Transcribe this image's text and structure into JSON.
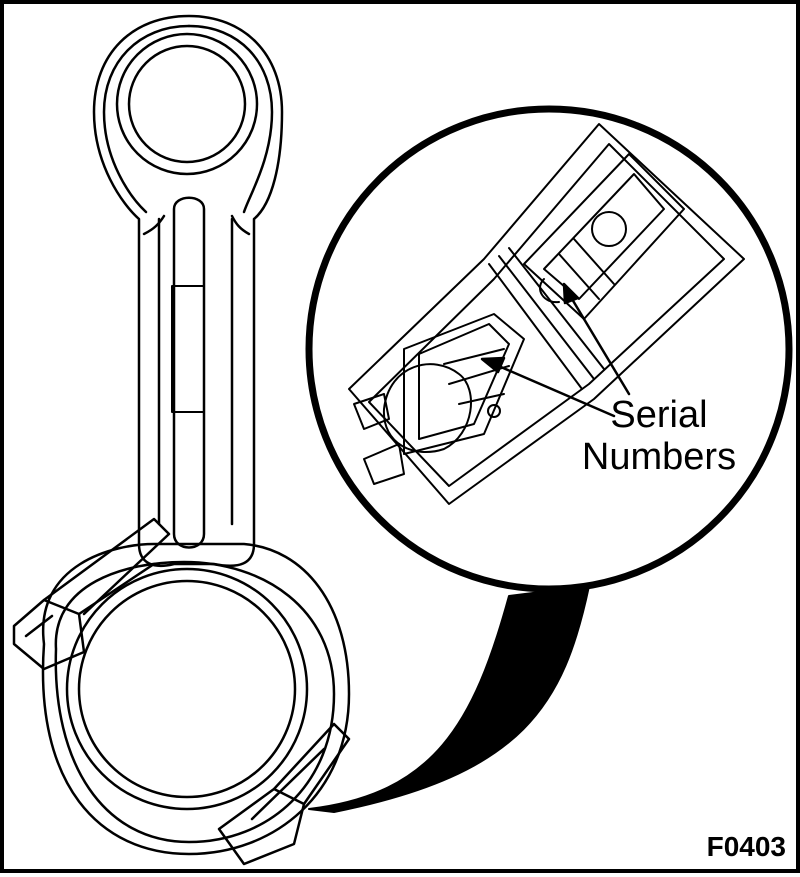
{
  "callout": {
    "line1": "Serial",
    "line2": "Numbers"
  },
  "figure_id": "F0403",
  "colors": {
    "ink": "#000000",
    "paper": "#ffffff"
  }
}
